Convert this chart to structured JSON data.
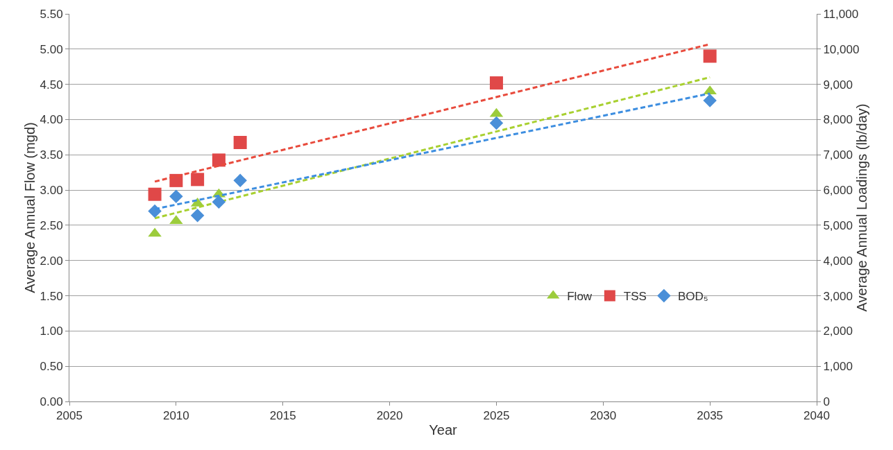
{
  "chart_data": {
    "type": "scatter",
    "xlabel": "Year",
    "ylabel": "Average Annual Flow (mgd)",
    "y2label": "Average Annual Loadings (lb/day)",
    "xlim": [
      2005,
      2040
    ],
    "xticks": [
      2005,
      2010,
      2015,
      2020,
      2025,
      2030,
      2035,
      2040
    ],
    "ylim": [
      0,
      5.5
    ],
    "yticks": [
      {
        "value": 0,
        "label": "0.00"
      },
      {
        "value": 0.5,
        "label": "0.50"
      },
      {
        "value": 1,
        "label": "1.00"
      },
      {
        "value": 1.5,
        "label": "1.50"
      },
      {
        "value": 2,
        "label": "2.00"
      },
      {
        "value": 2.5,
        "label": "2.50"
      },
      {
        "value": 3,
        "label": "3.00"
      },
      {
        "value": 3.5,
        "label": "3.50"
      },
      {
        "value": 4,
        "label": "4.00"
      },
      {
        "value": 4.5,
        "label": "4.50"
      },
      {
        "value": 5,
        "label": "5.00"
      },
      {
        "value": 5.5,
        "label": "5.50"
      }
    ],
    "y2lim": [
      0,
      11000
    ],
    "y2ticks": [
      0,
      {
        "value": 1000,
        "label": "1,000"
      },
      {
        "value": 2000,
        "label": "2,000"
      },
      {
        "value": 3000,
        "label": "3,000"
      },
      {
        "value": 4000,
        "label": "4,000"
      },
      {
        "value": 5000,
        "label": "5,000"
      },
      {
        "value": 6000,
        "label": "6,000"
      },
      {
        "value": 7000,
        "label": "7,000"
      },
      {
        "value": 8000,
        "label": "8,000"
      },
      {
        "value": 9000,
        "label": "9,000"
      },
      {
        "value": 10000,
        "label": "10,000"
      },
      {
        "value": 11000,
        "label": "11,000"
      }
    ],
    "grid": "y",
    "legend": "bottom right",
    "series": [
      {
        "name": "Flow",
        "color": "#9ccc3c",
        "marker": "triangle",
        "x": [
          2009,
          2010,
          2011,
          2012,
          2025,
          2035
        ],
        "values": [
          2.38,
          2.56,
          2.81,
          2.94,
          4.08,
          4.4
        ]
      },
      {
        "name": "TSS",
        "color": "#e04848",
        "marker": "square",
        "axis": "y2",
        "x": [
          2009,
          2010,
          2011,
          2012,
          2013,
          2025,
          2035
        ],
        "values": [
          5880,
          6270,
          6300,
          6850,
          7350,
          9040,
          9800
        ]
      },
      {
        "name": "BOD₅",
        "color": "#4a8fd8",
        "marker": "diamond",
        "axis": "y2",
        "x": [
          2009,
          2010,
          2011,
          2012,
          2013,
          2025,
          2035
        ],
        "values": [
          5400,
          5820,
          5280,
          5660,
          6270,
          7900,
          8540
        ]
      },
      {
        "type": "line",
        "color": "#a8d030",
        "line_style": "dashed",
        "x": [
          2009,
          2035
        ],
        "values": [
          2.6,
          4.6
        ]
      },
      {
        "type": "line",
        "color": "#e84a3c",
        "line_style": "dashed",
        "axis": "y2",
        "x": [
          2009,
          2035
        ],
        "values": [
          6240,
          10140
        ]
      },
      {
        "type": "line",
        "color": "#3d8ee0",
        "line_style": "dashed",
        "axis": "y2",
        "x": [
          2009,
          2035
        ],
        "values": [
          5460,
          8740
        ]
      }
    ]
  }
}
